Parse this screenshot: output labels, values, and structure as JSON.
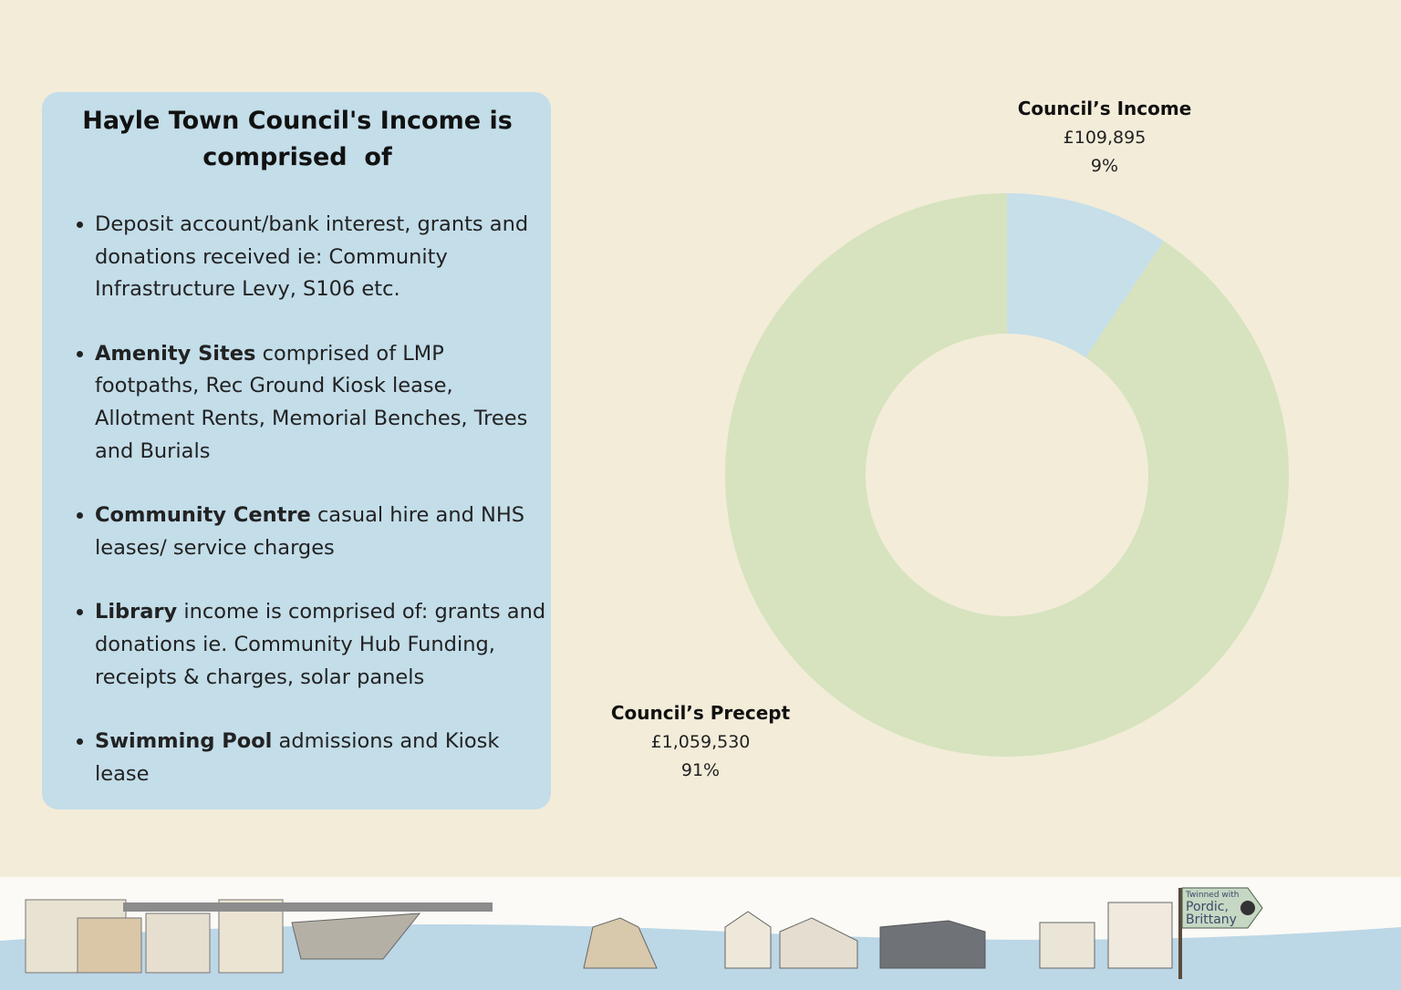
{
  "panel": {
    "title": "Hayle Town Council's Income is comprised  of",
    "items": [
      {
        "text": "Deposit account/bank interest, grants and donations received ie: Community Infrastructure Levy, S106 etc."
      },
      {
        "bold": "Amenity Sites",
        "text": "comprised of LMP footpaths, Rec Ground Kiosk lease, Allotment Rents, Memorial Benches, Trees and Burials"
      },
      {
        "bold": "Community Centre",
        "text": "casual hire and NHS leases/ service charges"
      },
      {
        "bold": "Library",
        "text": "income is comprised of: grants and donations ie. Community Hub Funding, receipts & charges, solar panels"
      },
      {
        "bold": "Swimming Pool",
        "text": "admissions and Kiosk lease"
      }
    ]
  },
  "chart_data": {
    "type": "donut",
    "categories": [
      "Council’s Income",
      "Council’s Precept"
    ],
    "values": [
      109895,
      1059530
    ],
    "value_labels": [
      "£109,895",
      "£1,059,530"
    ],
    "percent_labels": [
      "9%",
      "91%"
    ],
    "colors": [
      "#c6dfe9",
      "#d6e3be"
    ]
  },
  "footer": {
    "sign": [
      "Twinned with",
      "Pordic,",
      "Brittany"
    ]
  }
}
